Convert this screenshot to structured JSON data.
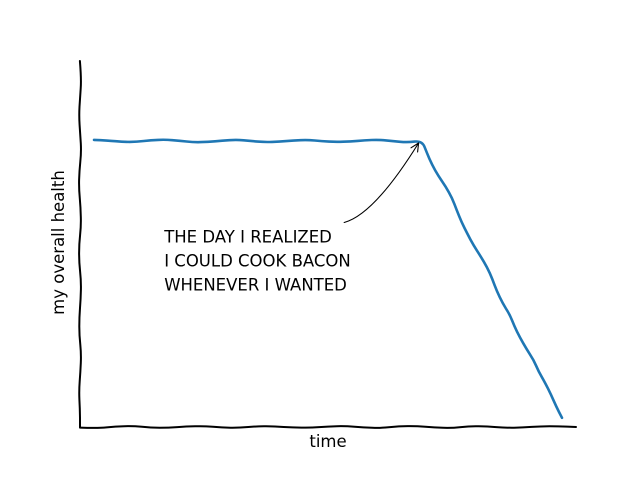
{
  "chart_data": {
    "type": "line",
    "title": "",
    "xlabel": "time",
    "ylabel": "my overall health",
    "xlim": [
      -3,
      103
    ],
    "ylim": [
      -30,
      10
    ],
    "grid": false,
    "legend": "none",
    "xticks": [],
    "yticks": [],
    "series": [
      {
        "color": "#1f77b4",
        "x": [
          0,
          70,
          75,
          80,
          85,
          90,
          95,
          100
        ],
        "y": [
          1,
          1,
          -4,
          -9,
          -14,
          -19,
          -24,
          -29
        ]
      }
    ],
    "annotation": {
      "lines": [
        "THE DAY I REALIZED",
        "I COULD COOK BACON",
        "WHENEVER I WANTED"
      ],
      "point": [
        70,
        1
      ],
      "text_position": [
        15,
        -10
      ]
    }
  }
}
